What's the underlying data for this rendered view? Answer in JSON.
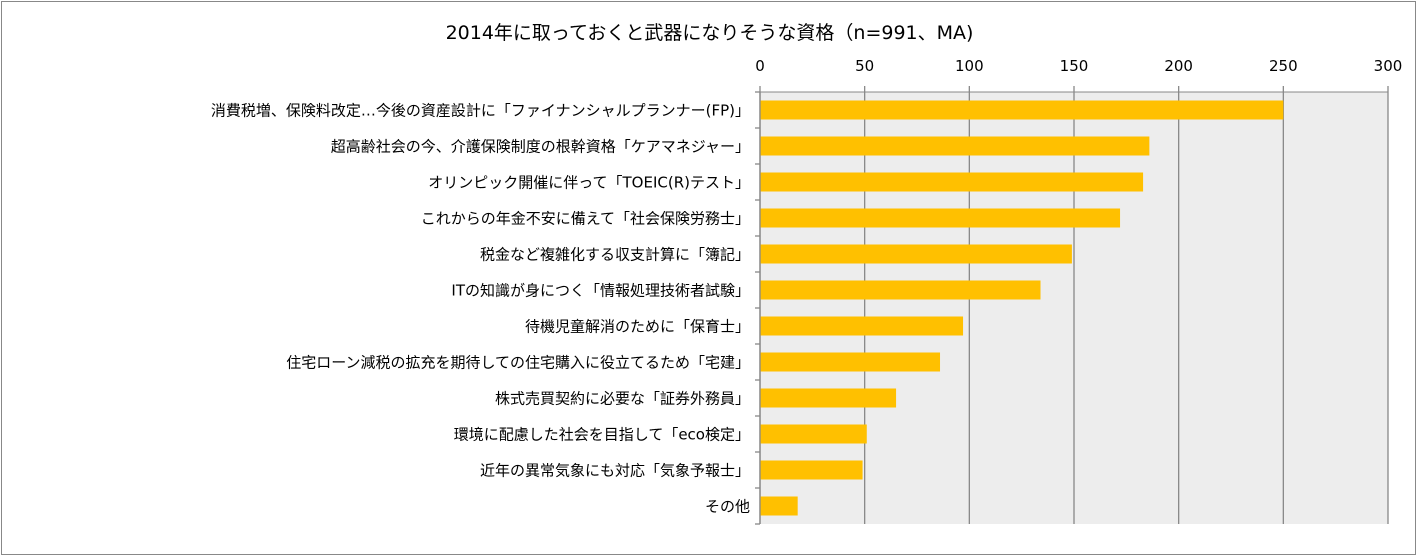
{
  "chart_data": {
    "type": "bar",
    "orientation": "horizontal",
    "title": "2014年に取っておくと武器になりそうな資格（n=991、MA)",
    "xlabel": "",
    "ylabel": "",
    "xlim": [
      0,
      300
    ],
    "xticks": [
      0,
      50,
      100,
      150,
      200,
      250,
      300
    ],
    "grid": true,
    "categories": [
      "消費税増、保険料改定…今後の資産設計に「ファイナンシャルプランナー(FP)」",
      "超高齢社会の今、介護保険制度の根幹資格「ケアマネジャー」",
      "オリンピック開催に伴って「TOEIC(R)テスト」",
      "これからの年金不安に備えて「社会保険労務士」",
      "税金など複雑化する収支計算に「簿記」",
      "ITの知識が身につく「情報処理技術者試験」",
      "待機児童解消のために「保育士」",
      "住宅ローン減税の拡充を期待しての住宅購入に役立てるため「宅建」",
      "株式売買契約に必要な「証券外務員」",
      "環境に配慮した社会を目指して「eco検定」",
      "近年の異常気象にも対応「気象予報士」",
      "その他"
    ],
    "values": [
      250,
      186,
      183,
      172,
      149,
      134,
      97,
      86,
      65,
      51,
      49,
      18
    ],
    "colors": {
      "bar": "#FFC000",
      "plot_bg": "#EDEDED",
      "grid": "#888888"
    }
  }
}
